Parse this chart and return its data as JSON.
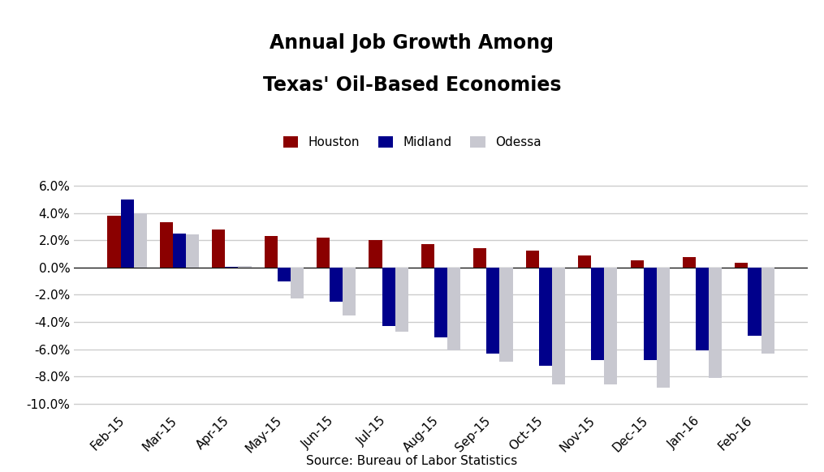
{
  "title_line1": "Annual Job Growth Among",
  "title_line2": "Texas' Oil-Based Economies",
  "source": "Source: Bureau of Labor Statistics",
  "categories": [
    "Feb-15",
    "Mar-15",
    "Apr-15",
    "May-15",
    "Jun-15",
    "Jul-15",
    "Aug-15",
    "Sep-15",
    "Oct-15",
    "Nov-15",
    "Dec-15",
    "Jan-16",
    "Feb-16"
  ],
  "series": {
    "Houston": [
      3.8,
      3.3,
      2.8,
      2.3,
      2.2,
      2.0,
      1.7,
      1.4,
      1.25,
      0.9,
      0.55,
      0.75,
      0.35
    ],
    "Midland": [
      5.0,
      2.5,
      0.05,
      -1.0,
      -2.5,
      -4.3,
      -5.1,
      -6.3,
      -7.2,
      -6.8,
      -6.8,
      -6.1,
      -5.0
    ],
    "Odessa": [
      4.0,
      2.4,
      0.1,
      -2.3,
      -3.5,
      -4.7,
      -6.1,
      -6.9,
      -8.6,
      -8.6,
      -8.8,
      -8.1,
      -6.3
    ]
  },
  "colors": {
    "Houston": "#8B0000",
    "Midland": "#00008B",
    "Odessa": "#C8C8D0"
  },
  "ylim": [
    -10.5,
    7.5
  ],
  "yticks": [
    -10.0,
    -8.0,
    -6.0,
    -4.0,
    -2.0,
    0.0,
    2.0,
    4.0,
    6.0
  ],
  "bar_width": 0.25,
  "background_color": "#FFFFFF",
  "grid_color": "#CCCCCC",
  "title_fontsize": 17,
  "legend_fontsize": 11,
  "tick_fontsize": 11,
  "source_fontsize": 11
}
